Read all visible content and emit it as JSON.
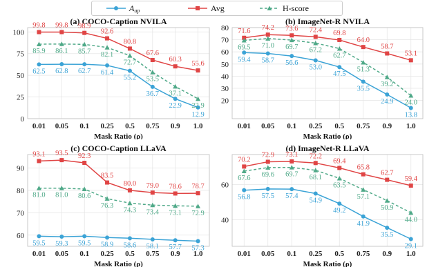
{
  "legend": {
    "placement": "top-center",
    "items": [
      {
        "main": "A",
        "sub": "up",
        "color": "#3ba3d6",
        "marker": "circle",
        "dash": "solid"
      },
      {
        "main": "Avg",
        "sub": "",
        "color": "#e04545",
        "marker": "square",
        "dash": "solid"
      },
      {
        "main": "H-score",
        "sub": "",
        "color": "#4fa988",
        "marker": "triangle",
        "dash": "dashed"
      }
    ]
  },
  "chart_data": [
    {
      "type": "line",
      "title": "(a) COCO-Caption NVILA",
      "xlabel": "Mask Ratio (ρ)",
      "categories": [
        "0.01",
        "0.05",
        "0.1",
        "0.25",
        "0.5",
        "0.75",
        "0.9",
        "1.0"
      ],
      "ylim": [
        0,
        105
      ],
      "yticks": [
        0,
        25,
        50,
        75,
        100
      ],
      "grid": true,
      "series": [
        {
          "name": "A_up",
          "color": "#3ba3d6",
          "values": [
            62.5,
            62.8,
            62.7,
            61.4,
            55.2,
            36.7,
            22.9,
            12.9
          ]
        },
        {
          "name": "Avg",
          "color": "#e04545",
          "values": [
            99.8,
            99.8,
            98.9,
            92.6,
            80.8,
            67.6,
            60.3,
            55.6
          ]
        },
        {
          "name": "H-score",
          "color": "#4fa988",
          "values": [
            85.9,
            86.1,
            85.7,
            82.1,
            72.7,
            53.5,
            37.1,
            22.9
          ]
        }
      ]
    },
    {
      "type": "line",
      "title": "(b) ImageNet-R NVILA",
      "xlabel": "Mask Ratio (ρ)",
      "categories": [
        "0.01",
        "0.05",
        "0.1",
        "0.25",
        "0.5",
        "0.75",
        "0.9",
        "1.0"
      ],
      "ylim": [
        5,
        80
      ],
      "yticks": [
        20,
        30,
        40,
        50,
        60,
        70,
        80
      ],
      "grid": true,
      "series": [
        {
          "name": "A_up",
          "color": "#3ba3d6",
          "values": [
            59.4,
            58.7,
            56.6,
            53.0,
            47.5,
            35.5,
            24.9,
            13.8
          ]
        },
        {
          "name": "Avg",
          "color": "#e04545",
          "values": [
            71.6,
            74.2,
            73.6,
            72.4,
            69.8,
            64.0,
            58.7,
            53.1
          ]
        },
        {
          "name": "H-score",
          "color": "#4fa988",
          "values": [
            69.5,
            71.0,
            69.7,
            67.2,
            62.7,
            51.3,
            39.2,
            24.0
          ]
        }
      ]
    },
    {
      "type": "line",
      "title": "(c) COCO-Caption LLaVA",
      "xlabel": "Mask Ratio (ρ)",
      "categories": [
        "0.01",
        "0.05",
        "0.1",
        "0.25",
        "0.5",
        "0.75",
        "0.9",
        "1.0"
      ],
      "ylim": [
        55,
        96
      ],
      "yticks": [
        60,
        70,
        80,
        90
      ],
      "grid": true,
      "series": [
        {
          "name": "A_up",
          "color": "#3ba3d6",
          "values": [
            59.5,
            59.3,
            59.5,
            58.9,
            58.6,
            58.1,
            57.7,
            57.3
          ]
        },
        {
          "name": "Avg",
          "color": "#e04545",
          "values": [
            93.1,
            93.5,
            92.3,
            83.5,
            80.0,
            79.0,
            78.6,
            78.7
          ]
        },
        {
          "name": "H-score",
          "color": "#4fa988",
          "values": [
            81.0,
            81.0,
            80.6,
            76.3,
            74.3,
            73.4,
            73.1,
            72.9
          ]
        }
      ]
    },
    {
      "type": "line",
      "title": "(d) ImageNet-R LLaVA",
      "xlabel": "Mask Ratio (ρ)",
      "categories": [
        "0.01",
        "0.05",
        "0.1",
        "0.25",
        "0.5",
        "0.75",
        "0.9",
        "1.0"
      ],
      "ylim": [
        25,
        77
      ],
      "yticks": [
        40,
        60
      ],
      "grid": true,
      "series": [
        {
          "name": "A_up",
          "color": "#3ba3d6",
          "values": [
            56.8,
            57.5,
            57.4,
            54.9,
            49.2,
            41.9,
            35.5,
            29.1
          ]
        },
        {
          "name": "Avg",
          "color": "#e04545",
          "values": [
            70.2,
            72.9,
            73.1,
            72.2,
            69.4,
            65.8,
            62.7,
            59.4
          ]
        },
        {
          "name": "H-score",
          "color": "#4fa988",
          "values": [
            67.6,
            69.6,
            69.7,
            68.1,
            63.5,
            57.1,
            50.9,
            44.0
          ]
        }
      ]
    }
  ]
}
